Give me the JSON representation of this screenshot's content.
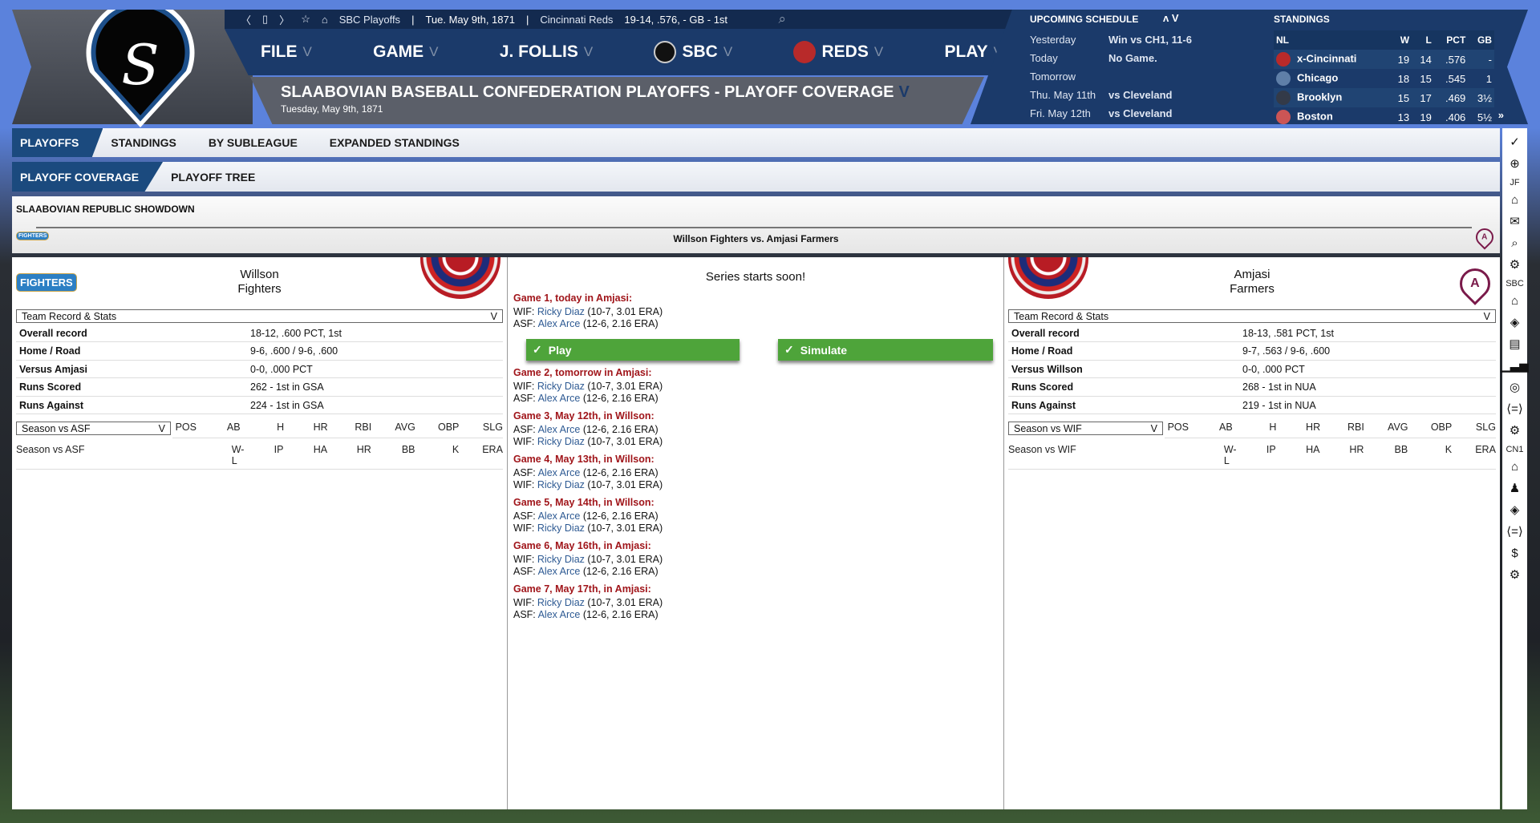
{
  "topbar": {
    "icons": [
      "back-icon",
      "window-icon",
      "forward-icon",
      "star-icon",
      "home-icon"
    ],
    "context": "SBC Playoffs",
    "date": "Tue. May 9th, 1871",
    "team": "Cincinnati Reds",
    "record": "19-14, .576, - GB - 1st",
    "sep": "|"
  },
  "menu": [
    {
      "label": "FILE"
    },
    {
      "label": "GAME"
    },
    {
      "label": "J. FOLLIS"
    },
    {
      "label": "SBC"
    },
    {
      "label": "REDS"
    },
    {
      "label": "PLAY"
    }
  ],
  "menu_chevron": "V",
  "header": {
    "title": "SLAABOVIAN BASEBALL CONFEDERATION PLAYOFFS - PLAYOFF COVERAGE",
    "title_chevron": "V",
    "date": "Tuesday, May 9th, 1871"
  },
  "schedule": {
    "title": "UPCOMING SCHEDULE",
    "arrows": "ʌ V",
    "rows": [
      {
        "day": "Yesterday",
        "info": "Win vs CH1, 11-6"
      },
      {
        "day": "Today",
        "info": "No Game."
      },
      {
        "day": "Tomorrow",
        "info": ""
      },
      {
        "day": "Thu. May 11th",
        "info": "vs Cleveland"
      },
      {
        "day": "Fri. May 12th",
        "info": "vs Cleveland"
      }
    ]
  },
  "standings": {
    "title": "STANDINGS",
    "headers": [
      "NL",
      "W",
      "L",
      "PCT",
      "GB"
    ],
    "rows": [
      {
        "team": "x-Cincinnati",
        "w": "19",
        "l": "14",
        "pct": ".576",
        "gb": "-",
        "color": "#b82a2a"
      },
      {
        "team": "Chicago",
        "w": "18",
        "l": "15",
        "pct": ".545",
        "gb": "1",
        "color": "#5f7fa8"
      },
      {
        "team": "Brooklyn",
        "w": "15",
        "l": "17",
        "pct": ".469",
        "gb": "3½",
        "color": "#333a48"
      },
      {
        "team": "Boston",
        "w": "13",
        "l": "19",
        "pct": ".406",
        "gb": "5½",
        "color": "#c55"
      }
    ],
    "more": "»"
  },
  "tabs": [
    {
      "label": "PLAYOFFS",
      "active": true
    },
    {
      "label": "STANDINGS"
    },
    {
      "label": "BY SUBLEAGUE"
    },
    {
      "label": "EXPANDED STANDINGS"
    }
  ],
  "subtabs": [
    {
      "label": "PLAYOFF COVERAGE",
      "active": true
    },
    {
      "label": "PLAYOFF TREE"
    }
  ],
  "section": {
    "title": "SLAABOVIAN REPUBLIC SHOWDOWN",
    "matchup": "Willson Fighters vs. Amjasi Farmers",
    "left_logo": "FIGHTERS",
    "right_logo": "A"
  },
  "left_team": {
    "city": "Willson",
    "name": "Fighters",
    "logo": "FIGHTERS",
    "select": "Team Record & Stats",
    "stats": [
      {
        "k": "Overall record",
        "v": "18-12, .600 PCT, 1st"
      },
      {
        "k": "Home / Road",
        "v": "9-6, .600 / 9-6, .600"
      },
      {
        "k": "Versus Amjasi",
        "v": "0-0, .000 PCT"
      },
      {
        "k": "Runs Scored",
        "v": "262 - 1st  in GSA"
      },
      {
        "k": "Runs Against",
        "v": "224 - 1st  in GSA"
      }
    ],
    "season_select": "Season vs ASF",
    "pitch_label": "Season vs ASF"
  },
  "right_team": {
    "city": "Amjasi",
    "name": "Farmers",
    "logo": "A",
    "select": "Team Record & Stats",
    "stats": [
      {
        "k": "Overall record",
        "v": "18-13, .581 PCT, 1st"
      },
      {
        "k": "Home / Road",
        "v": "9-7, .563 / 9-6, .600"
      },
      {
        "k": "Versus Willson",
        "v": "0-0, .000 PCT"
      },
      {
        "k": "Runs Scored",
        "v": "268 - 1st  in NUA"
      },
      {
        "k": "Runs Against",
        "v": "219 - 1st  in NUA"
      }
    ],
    "season_select": "Season vs WIF",
    "pitch_label": "Season vs WIF"
  },
  "batting_headers": [
    "POS",
    "AB",
    "H",
    "HR",
    "RBI",
    "AVG",
    "OBP",
    "SLG"
  ],
  "pitching_headers": [
    "W-L",
    "IP",
    "HA",
    "HR",
    "BB",
    "K",
    "ERA"
  ],
  "series": {
    "message": "Series starts soon!",
    "play": "Play",
    "simulate": "Simulate",
    "games": [
      {
        "title": "Game 1, today in Amjasi:",
        "lines": [
          [
            "WIF: ",
            "Ricky Diaz",
            " (10-7, 3.01 ERA)"
          ],
          [
            "ASF: ",
            "Alex Arce",
            " (12-6, 2.16 ERA)"
          ]
        ]
      },
      {
        "title": "Game 2, tomorrow in Amjasi:",
        "lines": [
          [
            "WIF: ",
            "Ricky Diaz",
            " (10-7, 3.01 ERA)"
          ],
          [
            "ASF: ",
            "Alex Arce",
            " (12-6, 2.16 ERA)"
          ]
        ]
      },
      {
        "title": "Game 3, May 12th,  in Willson:",
        "lines": [
          [
            "ASF: ",
            "Alex Arce",
            " (12-6, 2.16 ERA)"
          ],
          [
            "WIF: ",
            "Ricky Diaz",
            " (10-7, 3.01 ERA)"
          ]
        ]
      },
      {
        "title": "Game 4, May 13th,  in Willson:",
        "lines": [
          [
            "ASF: ",
            "Alex Arce",
            " (12-6, 2.16 ERA)"
          ],
          [
            "WIF: ",
            "Ricky Diaz",
            " (10-7, 3.01 ERA)"
          ]
        ]
      },
      {
        "title": "Game 5, May 14th,  in Willson:",
        "lines": [
          [
            "ASF: ",
            "Alex Arce",
            " (12-6, 2.16 ERA)"
          ],
          [
            "WIF: ",
            "Ricky Diaz",
            " (10-7, 3.01 ERA)"
          ]
        ]
      },
      {
        "title": "Game 6, May 16th,  in Amjasi:",
        "lines": [
          [
            "WIF: ",
            "Ricky Diaz",
            " (10-7, 3.01 ERA)"
          ],
          [
            "ASF: ",
            "Alex Arce",
            " (12-6, 2.16 ERA)"
          ]
        ]
      },
      {
        "title": "Game 7, May 17th,  in Amjasi:",
        "lines": [
          [
            "WIF: ",
            "Ricky Diaz",
            " (10-7, 3.01 ERA)"
          ],
          [
            "ASF: ",
            "Alex Arce",
            " (12-6, 2.16 ERA)"
          ]
        ]
      }
    ]
  },
  "rail": [
    {
      "i": "check-icon",
      "g": "✓"
    },
    {
      "i": "globe-icon",
      "g": "⊕"
    },
    {
      "l": "JF"
    },
    {
      "i": "home-icon",
      "g": "⌂"
    },
    {
      "i": "mail-icon",
      "g": "✉"
    },
    {
      "i": "search-icon",
      "g": "⌕"
    },
    {
      "i": "gear-icon",
      "g": "⚙"
    },
    {
      "l": "SBC"
    },
    {
      "i": "home-icon",
      "g": "⌂"
    },
    {
      "i": "eye-icon",
      "g": "◈"
    },
    {
      "i": "card-icon",
      "g": "▤"
    },
    {
      "i": "chart-icon",
      "g": "▁▃▅"
    },
    {
      "i": "baseball-icon",
      "g": "◎"
    },
    {
      "i": "trade-icon",
      "g": "⟨=⟩"
    },
    {
      "i": "gear-icon",
      "g": "⚙"
    },
    {
      "l": "CN1"
    },
    {
      "i": "home-icon",
      "g": "⌂"
    },
    {
      "i": "coach-icon",
      "g": "♟"
    },
    {
      "i": "eye-icon",
      "g": "◈"
    },
    {
      "i": "trade-icon",
      "g": "⟨=⟩"
    },
    {
      "i": "dollar-icon",
      "g": "$"
    },
    {
      "i": "gear-icon",
      "g": "⚙"
    }
  ],
  "colors": {
    "accent": "#1b3a6a",
    "tab_active": "#1b4a7e",
    "game_title": "#a0151a",
    "player_link": "#2e5a93",
    "button": "#4ea43a"
  }
}
